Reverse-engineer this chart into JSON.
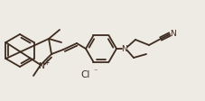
{
  "bg_color": "#eeebe5",
  "bond_color": "#3d2b1f",
  "atom_color": "#3d2b1f",
  "line_width": 1.3,
  "fig_width": 2.28,
  "fig_height": 1.12,
  "dpi": 100,
  "xlim": [
    0,
    228
  ],
  "ylim": [
    0,
    112
  ]
}
